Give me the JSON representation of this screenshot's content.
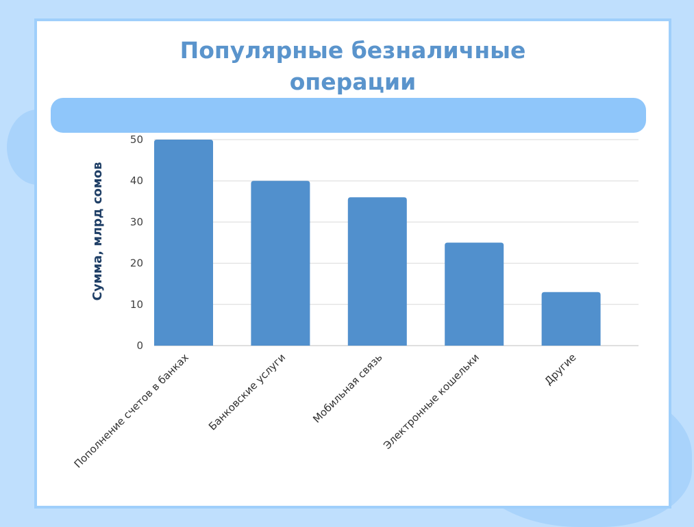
{
  "colors": {
    "background": "#bfdffd",
    "slide": "#ffffff",
    "band": "#8fc6fa",
    "title": "#5a94cc",
    "bar": "#5190cd",
    "gridline": "#d9d9d9",
    "ylabel": "#1f3f66"
  },
  "chart_data": {
    "type": "bar",
    "title": "Популярные безналичные\nоперации",
    "xlabel": "",
    "ylabel": "Сумма, млрд сомов",
    "categories": [
      "Пополнение счетов в банках",
      "Банковские услуги",
      "Мобильная связь",
      "Электронные кошельки",
      "Другие"
    ],
    "values": [
      50,
      40,
      36,
      25,
      13
    ],
    "ylim": [
      0,
      50
    ],
    "yticks": [
      0,
      10,
      20,
      30,
      40,
      50
    ],
    "grid": true,
    "legend": "none"
  }
}
